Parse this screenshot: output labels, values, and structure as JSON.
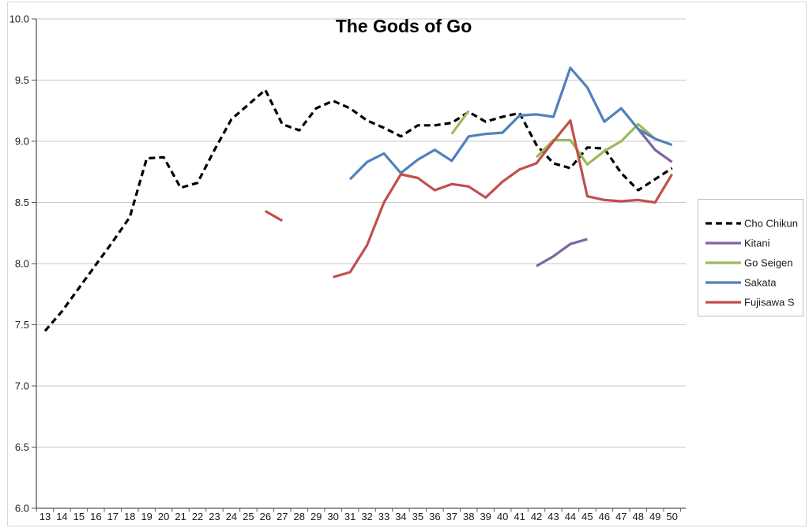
{
  "chart_data": {
    "type": "line",
    "title": "The Gods of Go",
    "xlabel": "",
    "ylabel": "",
    "x": [
      13,
      14,
      15,
      16,
      17,
      18,
      19,
      20,
      21,
      22,
      23,
      24,
      25,
      26,
      27,
      28,
      29,
      30,
      31,
      32,
      33,
      34,
      35,
      36,
      37,
      38,
      39,
      40,
      41,
      42,
      43,
      44,
      45,
      46,
      47,
      48,
      49,
      50
    ],
    "ylim": [
      6.0,
      10.0
    ],
    "ytick_step": 0.5,
    "ytick_labels": [
      "10.0",
      "9.5",
      "9.0",
      "8.5",
      "8.0",
      "7.5",
      "7.0",
      "6.5",
      "6.0"
    ],
    "grid": true,
    "legend_position": "right",
    "series": [
      {
        "name": "Cho Chikun",
        "color": "#000000",
        "dash": "dashed",
        "values": [
          7.45,
          7.61,
          7.8,
          7.99,
          8.18,
          8.38,
          8.86,
          8.87,
          8.62,
          8.66,
          8.93,
          9.18,
          9.3,
          9.42,
          9.14,
          9.09,
          9.27,
          9.33,
          9.27,
          9.17,
          9.11,
          9.04,
          9.13,
          9.13,
          9.15,
          9.24,
          9.16,
          9.2,
          9.23,
          8.97,
          8.82,
          8.78,
          8.95,
          8.94,
          8.74,
          8.6,
          8.69,
          8.78
        ]
      },
      {
        "name": "Kitani",
        "color": "#8064A2",
        "dash": "solid",
        "values": [
          null,
          null,
          null,
          null,
          null,
          null,
          null,
          null,
          null,
          null,
          null,
          null,
          null,
          null,
          null,
          null,
          null,
          null,
          null,
          null,
          null,
          null,
          null,
          null,
          null,
          null,
          null,
          null,
          null,
          7.98,
          8.06,
          8.16,
          8.2,
          null,
          null,
          9.1,
          8.93,
          8.83
        ]
      },
      {
        "name": "Go Seigen",
        "color": "#9BBB59",
        "dash": "solid",
        "values": [
          null,
          null,
          null,
          null,
          null,
          null,
          null,
          null,
          null,
          null,
          null,
          null,
          null,
          null,
          null,
          null,
          null,
          null,
          null,
          null,
          null,
          null,
          null,
          null,
          9.06,
          9.25,
          null,
          null,
          null,
          8.87,
          9.01,
          9.01,
          8.81,
          8.92,
          9.0,
          9.14,
          9.02,
          null
        ]
      },
      {
        "name": "Sakata",
        "color": "#4F81BD",
        "dash": "solid",
        "values": [
          null,
          null,
          null,
          null,
          null,
          null,
          null,
          null,
          null,
          null,
          null,
          null,
          null,
          null,
          null,
          null,
          null,
          null,
          8.69,
          8.83,
          8.9,
          8.74,
          8.85,
          8.93,
          8.84,
          9.04,
          9.06,
          9.07,
          9.21,
          9.22,
          9.2,
          9.6,
          9.44,
          9.16,
          9.27,
          9.1,
          9.02,
          8.97
        ]
      },
      {
        "name": "Fujisawa S",
        "color": "#C0504D",
        "dash": "solid",
        "values": [
          null,
          null,
          null,
          null,
          null,
          null,
          null,
          null,
          null,
          null,
          null,
          null,
          null,
          8.43,
          8.35,
          null,
          null,
          7.89,
          7.93,
          8.15,
          8.5,
          8.73,
          8.7,
          8.6,
          8.65,
          8.63,
          8.54,
          8.67,
          8.77,
          8.82,
          9.0,
          9.17,
          8.55,
          8.52,
          8.51,
          8.52,
          8.5,
          8.73
        ]
      }
    ]
  },
  "colors": {
    "gridline": "#C9C9C9",
    "axis": "#595959",
    "frame": "#D9D9D9",
    "legend_border": "#BFBFBF",
    "background": "#FFFFFF"
  }
}
